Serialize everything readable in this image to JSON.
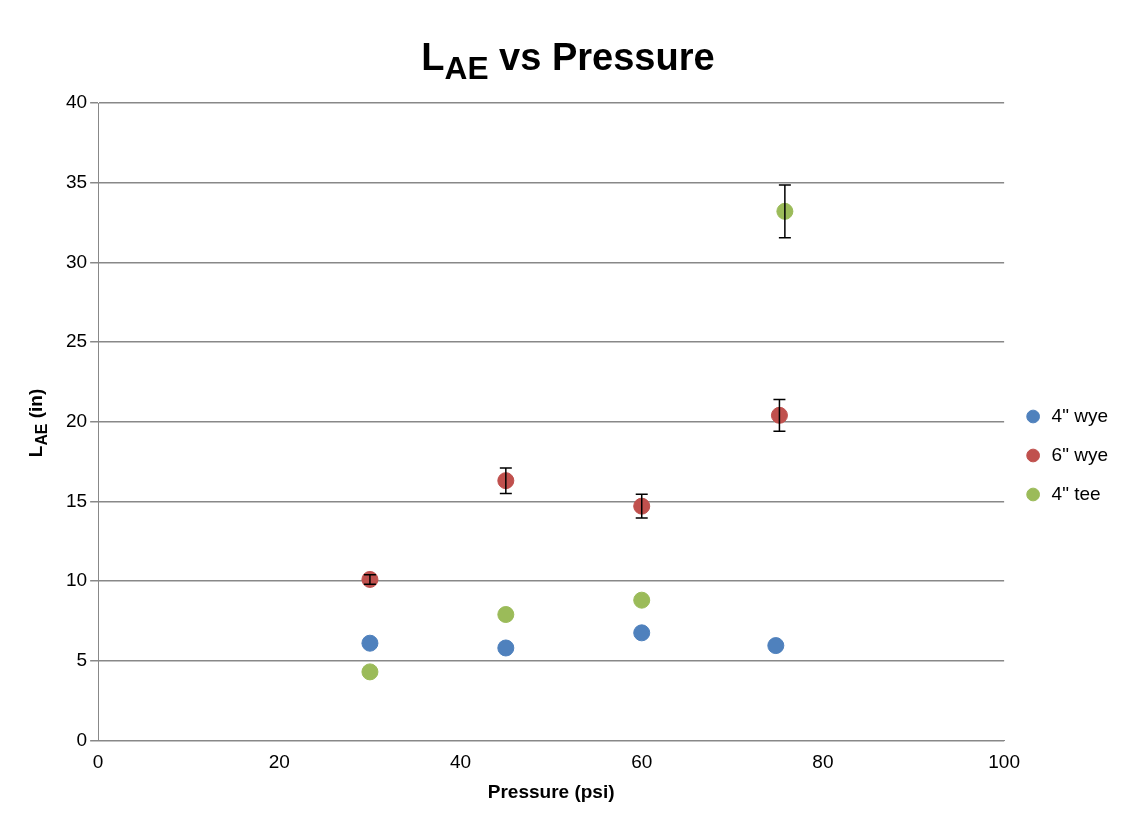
{
  "chart_data": {
    "type": "scatter",
    "title": "L$_{AE}$ vs Pressure",
    "xlabel": "Pressure (psi)",
    "ylabel": "L$_{AE}$ (in)",
    "series": [
      {
        "name": "4\" wye",
        "color": "#4f81bd",
        "x": [
          30,
          45,
          60,
          74.8
        ],
        "values": [
          6.1,
          5.8,
          6.75,
          5.95
        ],
        "errors": [
          null,
          null,
          null,
          null
        ]
      },
      {
        "name": "6\" wye",
        "color": "#c0504d",
        "x": [
          30,
          45,
          60,
          75.2
        ],
        "values": [
          10.1,
          16.3,
          14.7,
          20.4
        ],
        "errors": [
          0.3,
          0.8,
          0.75,
          1.0
        ]
      },
      {
        "name": "4\" tee",
        "color": "#9bbb59",
        "x": [
          30,
          45,
          60,
          75.8
        ],
        "values": [
          4.3,
          7.9,
          8.8,
          33.2
        ],
        "errors": [
          null,
          null,
          null,
          1.65
        ]
      }
    ],
    "xlim": [
      0,
      100
    ],
    "xticks": [
      0,
      20,
      40,
      60,
      80,
      100
    ],
    "ylim": [
      0,
      40
    ],
    "yticks": [
      0,
      5,
      10,
      15,
      20,
      25,
      30,
      35,
      40
    ],
    "grid": "y",
    "legend": "right",
    "marker": "circle"
  }
}
